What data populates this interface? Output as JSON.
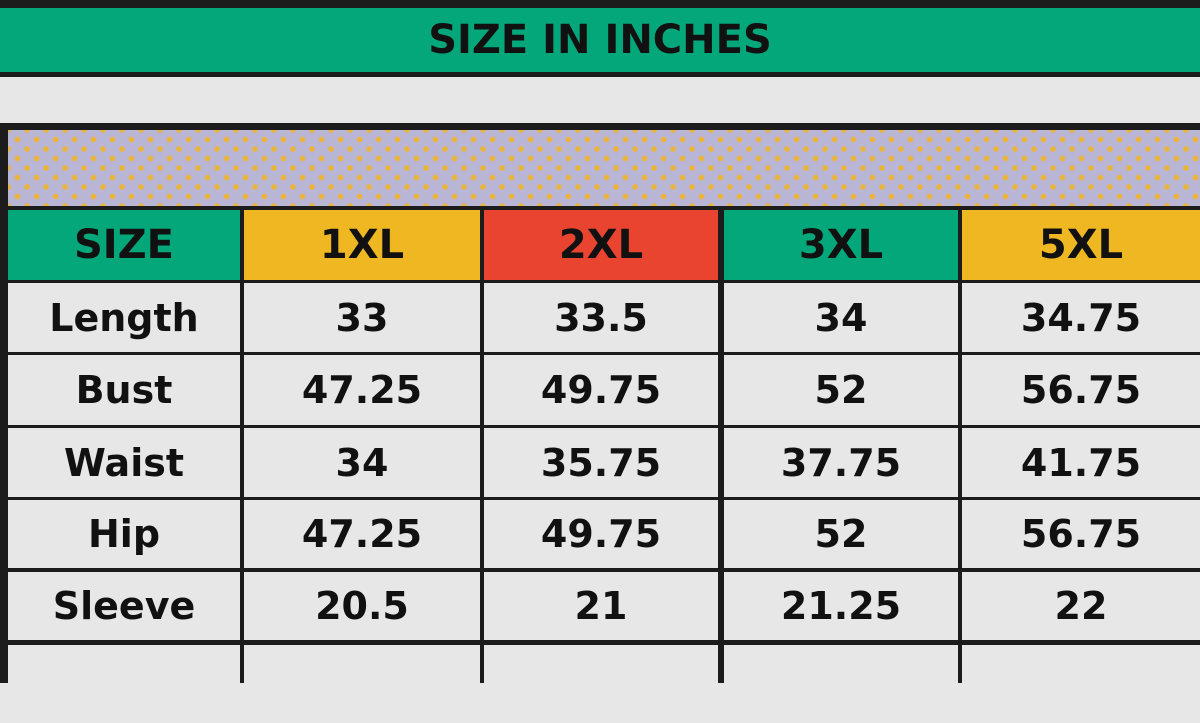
{
  "title": "SIZE IN INCHES",
  "header": {
    "label": "SIZE",
    "sizes": [
      "1XL",
      "2XL",
      "3XL",
      "5XL"
    ]
  },
  "colors": {
    "banner": "#03a77a",
    "header_size": "#03a77a",
    "header_1xl": "#efb823",
    "header_2xl": "#e8442f",
    "header_3xl": "#03a77a",
    "header_5xl": "#efb823",
    "pattern_bg": "#b9b5d4",
    "pattern_dots": "#eab53a"
  },
  "rows": [
    {
      "label": "Length",
      "values": [
        "33",
        "33.5",
        "34",
        "34.75"
      ]
    },
    {
      "label": "Bust",
      "values": [
        "47.25",
        "49.75",
        "52",
        "56.75"
      ]
    },
    {
      "label": "Waist",
      "values": [
        "34",
        "35.75",
        "37.75",
        "41.75"
      ]
    },
    {
      "label": "Hip",
      "values": [
        "47.25",
        "49.75",
        "52",
        "56.75"
      ]
    },
    {
      "label": "Sleeve",
      "values": [
        "20.5",
        "21",
        "21.25",
        "22"
      ]
    }
  ]
}
